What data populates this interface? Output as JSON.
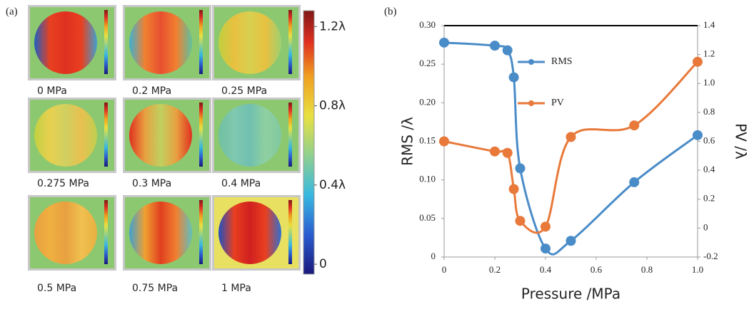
{
  "panel_a": {
    "label": "(a)",
    "images": [
      "0 MPa",
      "0.2 MPa",
      "0.25 MPa",
      "0.275 MPa",
      "0.3 MPa",
      "0.4 MPa",
      "0.5 MPa",
      "0.75 MPa",
      "1 MPa"
    ],
    "colorbar": {
      "lim": [
        -0.05,
        1.28
      ],
      "ticks": [
        {
          "value": 0,
          "label": "0"
        },
        {
          "value": 0.4,
          "label": "0.4λ"
        },
        {
          "value": 0.8,
          "label": "0.8λ"
        },
        {
          "value": 1.2,
          "label": "1.2λ"
        }
      ]
    }
  },
  "chart_data": {
    "type": "line",
    "label": "(b)",
    "x_label": "Pressure /MPa",
    "y_label": "RMS /λ",
    "y2_label": "PV /λ",
    "x": [
      0,
      0.2,
      0.25,
      0.275,
      0.3,
      0.4,
      0.5,
      0.75,
      1
    ],
    "xlim": [
      0,
      1
    ],
    "xticks": [
      0,
      0.2,
      0.4,
      0.6,
      0.8,
      {
        "value": 1,
        "label": "1.0"
      }
    ],
    "ylim": [
      0,
      0.3
    ],
    "yticks": [
      0,
      0.05,
      {
        "value": 0.1,
        "label": "0.10"
      },
      0.15,
      {
        "value": 0.2,
        "label": "0.20"
      },
      0.25,
      {
        "value": 0.3,
        "label": "0.30"
      }
    ],
    "y2lim": [
      -0.2,
      1.4
    ],
    "y2ticks": [
      -0.2,
      0,
      0.2,
      0.4,
      0.6,
      0.8,
      {
        "value": 1,
        "label": "1.0"
      },
      1.2,
      1.4
    ],
    "series": [
      {
        "name": "RMS",
        "color": "#4a8cc8",
        "values": [
          0.278,
          0.274,
          0.268,
          0.233,
          0.115,
          0.011,
          0.021,
          0.097,
          0.158
        ]
      },
      {
        "name": "PV",
        "color": "#e8793a",
        "axis": "y2",
        "values": [
          0.6,
          0.53,
          0.52,
          0.27,
          0.05,
          0.01,
          0.63,
          0.71,
          1.15
        ]
      }
    ]
  }
}
